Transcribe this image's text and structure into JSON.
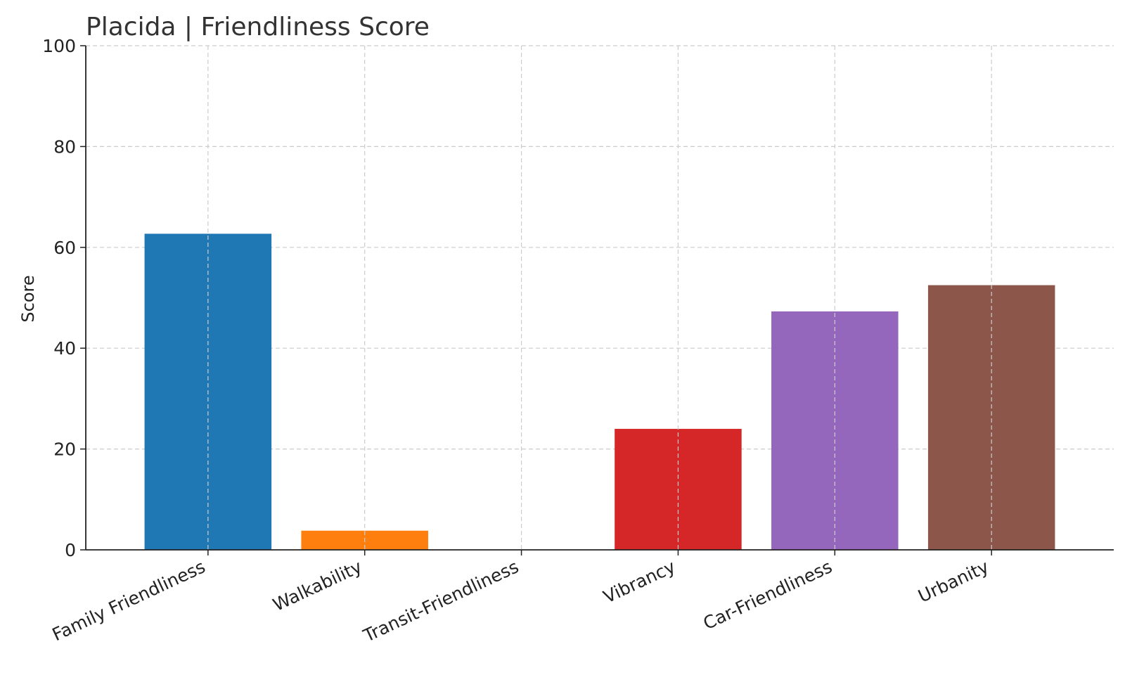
{
  "chart_data": {
    "type": "bar",
    "title": "Placida |  Friendliness Score",
    "xlabel": "",
    "ylabel": "Score",
    "categories": [
      "Family Friendliness",
      "Walkability",
      "Transit-Friendliness",
      "Vibrancy",
      "Car-Friendliness",
      "Urbanity"
    ],
    "values": [
      62.7,
      3.8,
      0,
      24,
      47.3,
      52.5
    ],
    "colors": [
      "#1f77b4",
      "#ff7f0e",
      "#2ca02c",
      "#d62728",
      "#9467bd",
      "#8c564b"
    ],
    "ylim": [
      0,
      100
    ],
    "yticks": [
      0,
      20,
      40,
      60,
      80,
      100
    ],
    "grid": true
  }
}
